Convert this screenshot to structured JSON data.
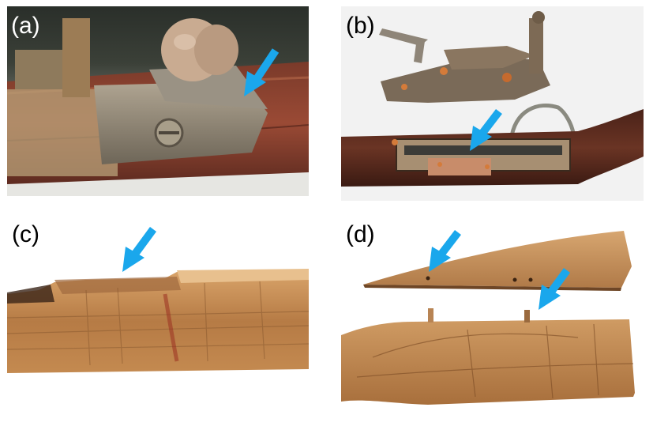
{
  "figure": {
    "panels": [
      {
        "id": "a",
        "label": "(a)"
      },
      {
        "id": "b",
        "label": "(b)"
      },
      {
        "id": "c",
        "label": "(c)"
      },
      {
        "id": "d",
        "label": "(d)"
      }
    ],
    "colors": {
      "arrow": "#1aa7ec",
      "wood_light": "#c9935a",
      "wood_dark": "#5a2a1e",
      "metal": "#8a8478"
    }
  }
}
